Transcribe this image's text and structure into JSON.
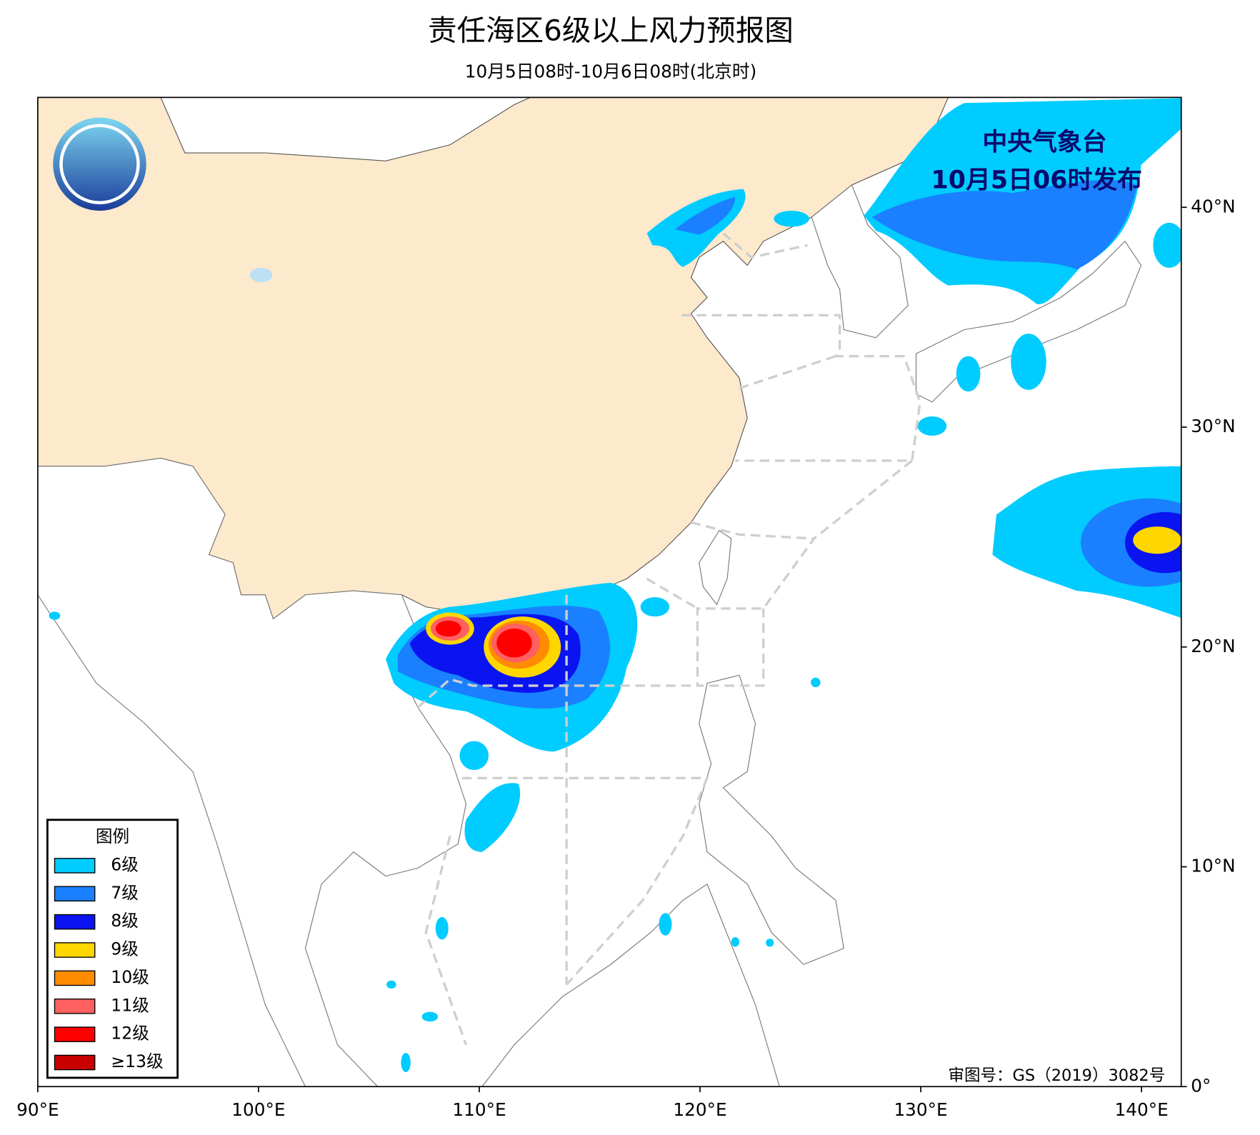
{
  "title": "责任海区6级以上风力预报图",
  "subtitle": "10月5日08时-10月6日08时(北京时)",
  "publisher": "中央气象台",
  "issue_time": "10月5日06时发布",
  "approval": "审图号：GS（2019）3082号",
  "map": {
    "xlim": [
      90,
      141.8
    ],
    "ylim": [
      0,
      45
    ],
    "xticks": [
      {
        "value": 90,
        "label": "90°E"
      },
      {
        "value": 100,
        "label": "100°E"
      },
      {
        "value": 110,
        "label": "110°E"
      },
      {
        "value": 120,
        "label": "120°E"
      },
      {
        "value": 130,
        "label": "130°E"
      },
      {
        "value": 140,
        "label": "140°E"
      }
    ],
    "yticks": [
      {
        "value": 0,
        "label": "0°"
      },
      {
        "value": 10,
        "label": "10°N"
      },
      {
        "value": 20,
        "label": "20°N"
      },
      {
        "value": 30,
        "label": "30°N"
      },
      {
        "value": 40,
        "label": "40°N"
      }
    ]
  },
  "legend": {
    "title": "图例",
    "items": [
      {
        "label": "6级",
        "color": "#00ccff"
      },
      {
        "label": "7级",
        "color": "#1a80ff"
      },
      {
        "label": "8级",
        "color": "#0a14f0"
      },
      {
        "label": "9级",
        "color": "#ffd700"
      },
      {
        "label": "10级",
        "color": "#ff8c00"
      },
      {
        "label": "11级",
        "color": "#ff6060"
      },
      {
        "label": "12级",
        "color": "#ff0000"
      },
      {
        "label": "≥13级",
        "color": "#c80000"
      }
    ]
  }
}
